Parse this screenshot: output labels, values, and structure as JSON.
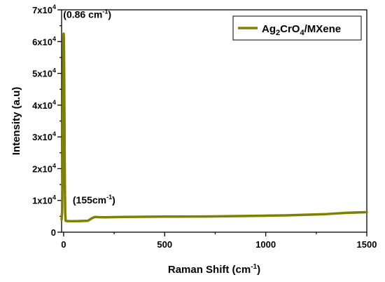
{
  "chart_data": {
    "type": "line",
    "xlabel": {
      "text": "Raman Shift (cm",
      "sup": "-1",
      "tail": ")"
    },
    "ylabel": "Intensity (a.u)",
    "xlim": [
      -10,
      1500
    ],
    "ylim": [
      0,
      70000
    ],
    "x_ticks": [
      {
        "value": 0,
        "label": "0"
      },
      {
        "value": 500,
        "label": "500"
      },
      {
        "value": 1000,
        "label": "1000"
      },
      {
        "value": 1500,
        "label": "1500"
      }
    ],
    "y_ticks": [
      {
        "value": 0,
        "base": "0",
        "exp": ""
      },
      {
        "value": 10000,
        "base": "1x10",
        "exp": "4"
      },
      {
        "value": 20000,
        "base": "2x10",
        "exp": "4"
      },
      {
        "value": 30000,
        "base": "3x10",
        "exp": "4"
      },
      {
        "value": 40000,
        "base": "4x10",
        "exp": "4"
      },
      {
        "value": 50000,
        "base": "5x10",
        "exp": "4"
      },
      {
        "value": 60000,
        "base": "6x10",
        "exp": "4"
      },
      {
        "value": 70000,
        "base": "7x10",
        "exp": "4"
      }
    ],
    "grid": false,
    "legend_position": "top-right",
    "series": [
      {
        "name_parts": [
          {
            "text": "Ag",
            "sub": false
          },
          {
            "text": "2",
            "sub": true
          },
          {
            "text": "CrO",
            "sub": false
          },
          {
            "text": "4",
            "sub": true
          },
          {
            "text": "/MXene",
            "sub": false
          }
        ],
        "color": "#808000",
        "x": [
          -10,
          -7,
          -5,
          -4,
          -3,
          -2,
          -1,
          0,
          1,
          2,
          3,
          4,
          5,
          6,
          8,
          10,
          15,
          20,
          40,
          80,
          120,
          140,
          155,
          170,
          200,
          300,
          500,
          700,
          900,
          1000,
          1100,
          1200,
          1300,
          1400,
          1450,
          1500
        ],
        "y": [
          4000,
          7000,
          20000,
          36000,
          46000,
          55000,
          61000,
          62500,
          61500,
          57000,
          48000,
          38000,
          27000,
          16000,
          6000,
          3600,
          3500,
          3500,
          3450,
          3500,
          3600,
          4400,
          4800,
          4750,
          4700,
          4800,
          4900,
          4950,
          5100,
          5200,
          5300,
          5500,
          5700,
          6100,
          6200,
          6300
        ]
      }
    ],
    "annotations": [
      {
        "name": "annotation-peak-0-86",
        "text": "(0.86 cm",
        "sup": "-1",
        "tail": ")",
        "x": -2,
        "y": 67500
      },
      {
        "name": "annotation-peak-155",
        "text": "(155cm",
        "sup": "-1",
        "tail": ")",
        "x": 45,
        "y": 9000
      }
    ]
  }
}
